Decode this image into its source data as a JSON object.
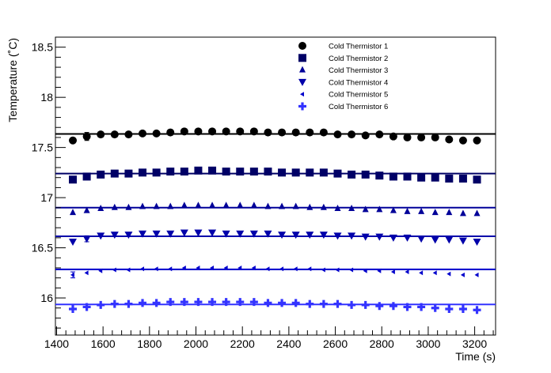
{
  "chart_data": {
    "type": "scatter",
    "xlabel": "Time (s)",
    "ylabel": "Temperature (˚C)",
    "xlim": [
      1395,
      3290
    ],
    "ylim": [
      15.63,
      18.6
    ],
    "x_ticks": [
      "1400",
      "1600",
      "1800",
      "2000",
      "2200",
      "2400",
      "2600",
      "2800",
      "3000",
      "3200"
    ],
    "y_ticks": [
      "16",
      "16.5",
      "17",
      "17.5",
      "18",
      "18.5"
    ],
    "legend_position": "top-right",
    "x": [
      1470,
      1530,
      1590,
      1650,
      1710,
      1770,
      1830,
      1890,
      1950,
      2010,
      2070,
      2130,
      2190,
      2250,
      2310,
      2370,
      2430,
      2490,
      2550,
      2610,
      2670,
      2730,
      2790,
      2850,
      2910,
      2970,
      3030,
      3090,
      3150,
      3210
    ],
    "series": [
      {
        "name": "Cold Thermistor 1",
        "marker": "circle",
        "color": "#000000",
        "fit": 17.635,
        "values": [
          17.57,
          17.61,
          17.63,
          17.63,
          17.63,
          17.64,
          17.64,
          17.65,
          17.66,
          17.66,
          17.66,
          17.66,
          17.66,
          17.66,
          17.65,
          17.65,
          17.65,
          17.65,
          17.65,
          17.63,
          17.63,
          17.62,
          17.63,
          17.61,
          17.6,
          17.6,
          17.6,
          17.58,
          17.57,
          17.57
        ],
        "errors": [
          0,
          0.04,
          0,
          0,
          0,
          0,
          0,
          0,
          0,
          0,
          0,
          0,
          0,
          0,
          0,
          0,
          0,
          0,
          0,
          0,
          0,
          0,
          0,
          0,
          0,
          0,
          0,
          0,
          0,
          0
        ]
      },
      {
        "name": "Cold Thermistor 2",
        "marker": "square",
        "color": "#000066",
        "fit": 17.24,
        "values": [
          17.18,
          17.21,
          17.23,
          17.24,
          17.24,
          17.25,
          17.25,
          17.26,
          17.26,
          17.27,
          17.27,
          17.26,
          17.26,
          17.26,
          17.26,
          17.25,
          17.25,
          17.25,
          17.25,
          17.24,
          17.23,
          17.23,
          17.22,
          17.21,
          17.21,
          17.2,
          17.2,
          17.19,
          17.19,
          17.18
        ],
        "errors": [
          0,
          0.03,
          0,
          0,
          0,
          0,
          0,
          0,
          0,
          0,
          0,
          0,
          0,
          0,
          0,
          0,
          0,
          0,
          0,
          0,
          0,
          0,
          0,
          0,
          0,
          0,
          0,
          0,
          0,
          0
        ]
      },
      {
        "name": "Cold Thermistor 3",
        "marker": "triangle-up",
        "color": "#000099",
        "fit": 16.9,
        "values": [
          16.85,
          16.87,
          16.89,
          16.9,
          16.9,
          16.91,
          16.91,
          16.91,
          16.92,
          16.92,
          16.92,
          16.92,
          16.92,
          16.92,
          16.91,
          16.91,
          16.91,
          16.9,
          16.9,
          16.89,
          16.89,
          16.88,
          16.88,
          16.87,
          16.86,
          16.86,
          16.85,
          16.85,
          16.84,
          16.84
        ],
        "errors": [
          0,
          0,
          0,
          0,
          0,
          0,
          0,
          0,
          0,
          0,
          0,
          0,
          0,
          0,
          0,
          0,
          0,
          0,
          0,
          0,
          0,
          0,
          0,
          0,
          0,
          0,
          0,
          0,
          0,
          0
        ]
      },
      {
        "name": "Cold Thermistor 4",
        "marker": "triangle-down",
        "color": "#0000aa",
        "fit": 16.615,
        "values": [
          16.56,
          16.59,
          16.62,
          16.63,
          16.63,
          16.64,
          16.64,
          16.64,
          16.65,
          16.65,
          16.65,
          16.64,
          16.64,
          16.64,
          16.64,
          16.63,
          16.63,
          16.63,
          16.63,
          16.62,
          16.62,
          16.61,
          16.61,
          16.6,
          16.6,
          16.59,
          16.58,
          16.58,
          16.57,
          16.56
        ],
        "errors": [
          0,
          0.03,
          0,
          0,
          0,
          0,
          0,
          0,
          0,
          0,
          0,
          0,
          0,
          0,
          0,
          0,
          0,
          0,
          0,
          0,
          0,
          0,
          0,
          0,
          0,
          0,
          0,
          0,
          0,
          0
        ]
      },
      {
        "name": "Cold Thermistor 5",
        "marker": "triangle-left",
        "color": "#0000cc",
        "fit": 16.285,
        "values": [
          16.23,
          16.25,
          16.27,
          16.28,
          16.28,
          16.29,
          16.29,
          16.29,
          16.3,
          16.3,
          16.3,
          16.3,
          16.3,
          16.3,
          16.29,
          16.29,
          16.29,
          16.29,
          16.28,
          16.28,
          16.28,
          16.27,
          16.27,
          16.26,
          16.26,
          16.25,
          16.25,
          16.24,
          16.23,
          16.23
        ],
        "errors": [
          0.03,
          0,
          0,
          0,
          0,
          0,
          0,
          0,
          0,
          0,
          0,
          0,
          0,
          0,
          0,
          0,
          0,
          0,
          0,
          0,
          0,
          0,
          0,
          0,
          0,
          0,
          0,
          0,
          0,
          0
        ]
      },
      {
        "name": "Cold Thermistor 6",
        "marker": "cross",
        "color": "#3333ff",
        "fit": 15.935,
        "values": [
          15.89,
          15.91,
          15.93,
          15.94,
          15.94,
          15.95,
          15.95,
          15.96,
          15.96,
          15.96,
          15.96,
          15.96,
          15.96,
          15.96,
          15.95,
          15.95,
          15.95,
          15.94,
          15.94,
          15.94,
          15.93,
          15.93,
          15.92,
          15.92,
          15.91,
          15.91,
          15.9,
          15.89,
          15.89,
          15.88
        ],
        "errors": [
          0,
          0,
          0,
          0,
          0,
          0,
          0,
          0,
          0,
          0,
          0,
          0,
          0,
          0,
          0,
          0,
          0,
          0,
          0,
          0,
          0,
          0,
          0,
          0,
          0,
          0,
          0,
          0,
          0,
          0
        ]
      }
    ]
  }
}
